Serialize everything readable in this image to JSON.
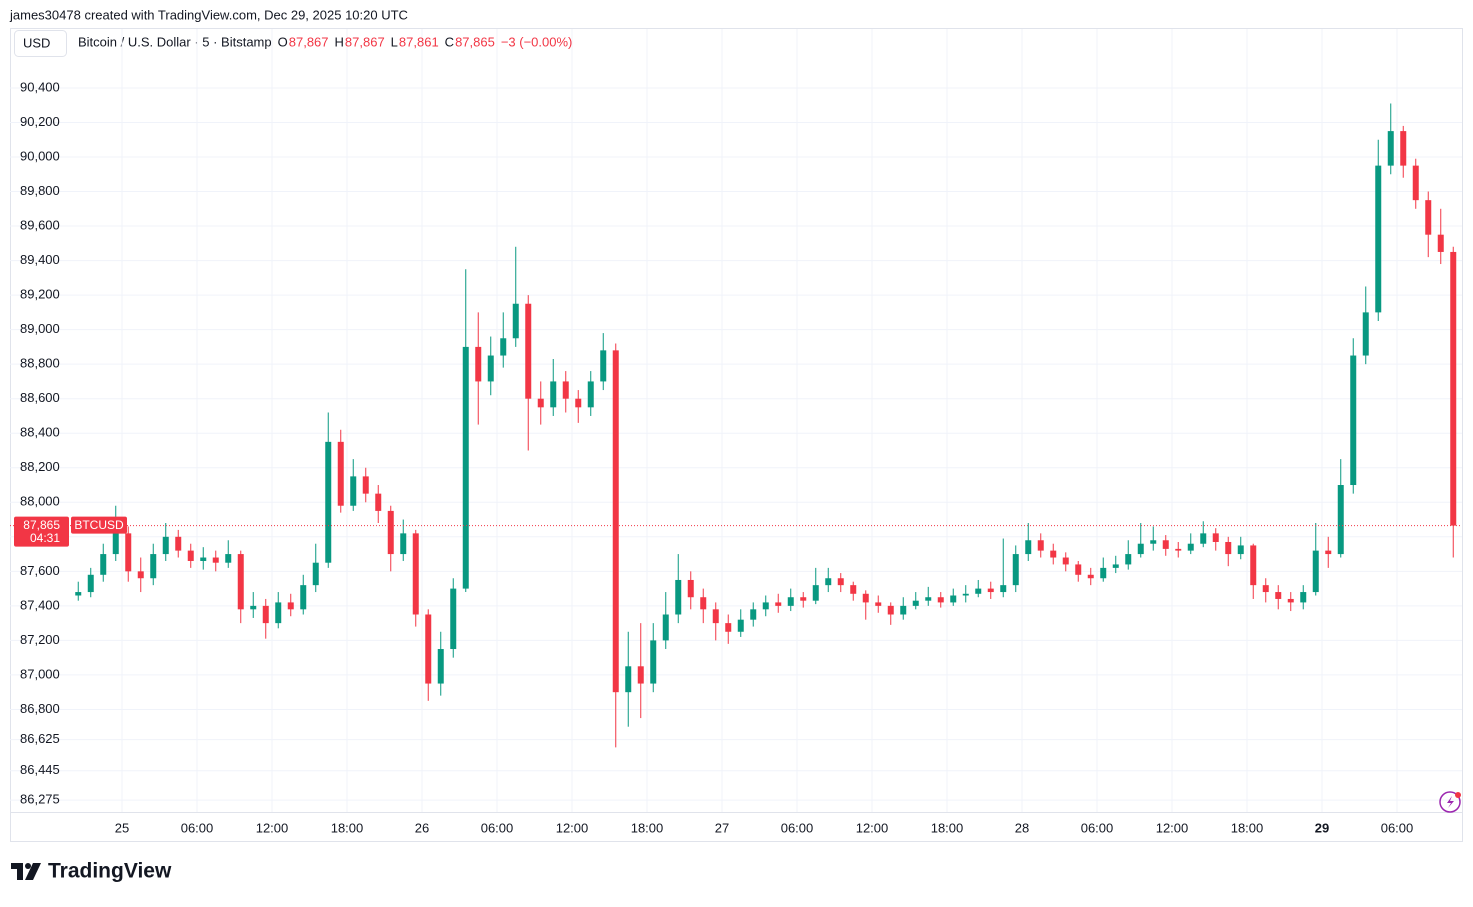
{
  "credit": "james30478 created with TradingView.com, Dec 29, 2025 10:20 UTC",
  "currency": "USD",
  "logo": "TradingView",
  "chart_data": {
    "type": "candlestick",
    "title": "Bitcoin / U.S. Dollar · 5 · Bitstamp",
    "ohlc_legend": [
      {
        "key": "O",
        "value": "87,867"
      },
      {
        "key": "H",
        "value": "87,867"
      },
      {
        "key": "L",
        "value": "87,861"
      },
      {
        "key": "C",
        "value": "87,865"
      }
    ],
    "change": "−3 (−0.00%)",
    "symbol": "BTCUSD",
    "last_price_label": "87,865",
    "countdown": "04:31",
    "up_color": "#089981",
    "down_color": "#f23645",
    "grid": true,
    "ylim": [
      86206,
      90585
    ],
    "yticks": [
      {
        "value": 86275,
        "label": "86,275"
      },
      {
        "value": 86445,
        "label": "86,445"
      },
      {
        "value": 86625,
        "label": "86,625"
      },
      {
        "value": 86800,
        "label": "86,800"
      },
      {
        "value": 87000,
        "label": "87,000"
      },
      {
        "value": 87200,
        "label": "87,200"
      },
      {
        "value": 87400,
        "label": "87,400"
      },
      {
        "value": 87600,
        "label": "87,600"
      },
      {
        "value": 87800,
        "label": "87,800"
      },
      {
        "value": 88000,
        "label": "88,000"
      },
      {
        "value": 88200,
        "label": "88,200"
      },
      {
        "value": 88400,
        "label": "88,400"
      },
      {
        "value": 88600,
        "label": "88,600"
      },
      {
        "value": 88800,
        "label": "88,800"
      },
      {
        "value": 89000,
        "label": "89,000"
      },
      {
        "value": 89200,
        "label": "89,200"
      },
      {
        "value": 89400,
        "label": "89,400"
      },
      {
        "value": 89600,
        "label": "89,600"
      },
      {
        "value": 89800,
        "label": "89,800"
      },
      {
        "value": 90000,
        "label": "90,000"
      },
      {
        "value": 90200,
        "label": "90,200"
      },
      {
        "value": 90400,
        "label": "90,400"
      }
    ],
    "xticks": [
      {
        "value": "2025-12-25T00:00",
        "label": "25"
      },
      {
        "value": "2025-12-25T06:00",
        "label": "06:00"
      },
      {
        "value": "2025-12-25T12:00",
        "label": "12:00"
      },
      {
        "value": "2025-12-25T18:00",
        "label": "18:00"
      },
      {
        "value": "2025-12-26T00:00",
        "label": "26"
      },
      {
        "value": "2025-12-26T06:00",
        "label": "06:00"
      },
      {
        "value": "2025-12-26T12:00",
        "label": "12:00"
      },
      {
        "value": "2025-12-26T18:00",
        "label": "18:00"
      },
      {
        "value": "2025-12-27T00:00",
        "label": "27"
      },
      {
        "value": "2025-12-27T06:00",
        "label": "06:00"
      },
      {
        "value": "2025-12-27T12:00",
        "label": "12:00"
      },
      {
        "value": "2025-12-27T18:00",
        "label": "18:00"
      },
      {
        "value": "2025-12-28T00:00",
        "label": "28"
      },
      {
        "value": "2025-12-28T06:00",
        "label": "06:00"
      },
      {
        "value": "2025-12-28T12:00",
        "label": "12:00"
      },
      {
        "value": "2025-12-28T18:00",
        "label": "18:00"
      },
      {
        "value": "2025-12-29T00:00",
        "label": "29"
      },
      {
        "value": "2025-12-29T06:00",
        "label": "06:00"
      }
    ],
    "x": [
      "2025-12-24T20:00",
      "2025-12-24T21:00",
      "2025-12-24T22:00",
      "2025-12-24T23:00",
      "2025-12-25T00:00",
      "2025-12-25T01:00",
      "2025-12-25T02:00",
      "2025-12-25T03:00",
      "2025-12-25T04:00",
      "2025-12-25T05:00",
      "2025-12-25T06:00",
      "2025-12-25T07:00",
      "2025-12-25T08:00",
      "2025-12-25T09:00",
      "2025-12-25T10:00",
      "2025-12-25T11:00",
      "2025-12-25T12:00",
      "2025-12-25T13:00",
      "2025-12-25T14:00",
      "2025-12-25T15:00",
      "2025-12-25T16:00",
      "2025-12-25T17:00",
      "2025-12-25T18:00",
      "2025-12-25T19:00",
      "2025-12-25T20:00",
      "2025-12-25T21:00",
      "2025-12-25T22:00",
      "2025-12-25T23:00",
      "2025-12-26T00:00",
      "2025-12-26T01:00",
      "2025-12-26T02:00",
      "2025-12-26T03:00",
      "2025-12-26T04:00",
      "2025-12-26T05:00",
      "2025-12-26T06:00",
      "2025-12-26T07:00",
      "2025-12-26T08:00",
      "2025-12-26T09:00",
      "2025-12-26T10:00",
      "2025-12-26T11:00",
      "2025-12-26T12:00",
      "2025-12-26T13:00",
      "2025-12-26T14:00",
      "2025-12-26T15:00",
      "2025-12-26T16:00",
      "2025-12-26T17:00",
      "2025-12-26T18:00",
      "2025-12-26T19:00",
      "2025-12-26T20:00",
      "2025-12-26T21:00",
      "2025-12-26T22:00",
      "2025-12-26T23:00",
      "2025-12-27T00:00",
      "2025-12-27T01:00",
      "2025-12-27T02:00",
      "2025-12-27T03:00",
      "2025-12-27T04:00",
      "2025-12-27T05:00",
      "2025-12-27T06:00",
      "2025-12-27T07:00",
      "2025-12-27T08:00",
      "2025-12-27T09:00",
      "2025-12-27T10:00",
      "2025-12-27T11:00",
      "2025-12-27T12:00",
      "2025-12-27T13:00",
      "2025-12-27T14:00",
      "2025-12-27T15:00",
      "2025-12-27T16:00",
      "2025-12-27T17:00",
      "2025-12-27T18:00",
      "2025-12-27T19:00",
      "2025-12-27T20:00",
      "2025-12-27T21:00",
      "2025-12-27T22:00",
      "2025-12-27T23:00",
      "2025-12-28T00:00",
      "2025-12-28T01:00",
      "2025-12-28T02:00",
      "2025-12-28T03:00",
      "2025-12-28T04:00",
      "2025-12-28T05:00",
      "2025-12-28T06:00",
      "2025-12-28T07:00",
      "2025-12-28T08:00",
      "2025-12-28T09:00",
      "2025-12-28T10:00",
      "2025-12-28T11:00",
      "2025-12-28T12:00",
      "2025-12-28T13:00",
      "2025-12-28T14:00",
      "2025-12-28T15:00",
      "2025-12-28T16:00",
      "2025-12-28T17:00",
      "2025-12-28T18:00",
      "2025-12-28T19:00",
      "2025-12-28T20:00",
      "2025-12-28T21:00",
      "2025-12-28T22:00",
      "2025-12-28T23:00",
      "2025-12-29T00:00",
      "2025-12-29T01:00",
      "2025-12-29T02:00",
      "2025-12-29T03:00",
      "2025-12-29T04:00",
      "2025-12-29T05:00",
      "2025-12-29T06:00",
      "2025-12-29T07:00",
      "2025-12-29T08:00",
      "2025-12-29T09:00",
      "2025-12-29T10:00"
    ],
    "open": [
      87460,
      87480,
      87580,
      87700,
      87820,
      87600,
      87560,
      87700,
      87800,
      87720,
      87660,
      87680,
      87650,
      87700,
      87380,
      87400,
      87300,
      87420,
      87380,
      87520,
      87650,
      88350,
      87980,
      88150,
      88050,
      87950,
      87700,
      87820,
      87350,
      86950,
      87150,
      87500,
      88900,
      88700,
      88850,
      88950,
      89150,
      88600,
      88550,
      88700,
      88600,
      88550,
      88700,
      88880,
      86900,
      87050,
      86950,
      87200,
      87350,
      87550,
      87450,
      87380,
      87300,
      87250,
      87320,
      87380,
      87420,
      87400,
      87450,
      87430,
      87520,
      87560,
      87520,
      87470,
      87420,
      87400,
      87350,
      87400,
      87430,
      87450,
      87420,
      87460,
      87470,
      87500,
      87480,
      87520,
      87700,
      87780,
      87720,
      87680,
      87640,
      87580,
      87560,
      87620,
      87640,
      87700,
      87760,
      87780,
      87730,
      87720,
      87760,
      87820,
      87770,
      87700,
      87750,
      87520,
      87480,
      87440,
      87420,
      87480,
      87720,
      87700,
      88100,
      88850,
      89100,
      89950,
      90150,
      89950,
      89750,
      89550,
      89450
    ],
    "high": [
      87540,
      87620,
      87760,
      87980,
      87860,
      87680,
      87760,
      87880,
      87840,
      87760,
      87740,
      87720,
      87780,
      87720,
      87480,
      87440,
      87480,
      87470,
      87580,
      87760,
      88520,
      88420,
      88250,
      88200,
      88100,
      87980,
      87900,
      87840,
      87380,
      87250,
      87560,
      89350,
      89100,
      88960,
      89100,
      89480,
      89200,
      88700,
      88830,
      88760,
      88650,
      88760,
      88980,
      88920,
      87250,
      87300,
      87300,
      87480,
      87700,
      87600,
      87500,
      87420,
      87350,
      87380,
      87420,
      87460,
      87470,
      87500,
      87480,
      87620,
      87620,
      87590,
      87540,
      87490,
      87460,
      87420,
      87450,
      87480,
      87510,
      87480,
      87500,
      87520,
      87550,
      87540,
      87790,
      87750,
      87880,
      87820,
      87760,
      87710,
      87660,
      87620,
      87680,
      87690,
      87780,
      87880,
      87860,
      87810,
      87770,
      87820,
      87890,
      87850,
      87800,
      87800,
      87760,
      87560,
      87520,
      87480,
      87520,
      87880,
      87800,
      88250,
      88950,
      89250,
      90100,
      90310,
      90180,
      89990,
      89800,
      89700,
      89480
    ],
    "low": [
      87430,
      87450,
      87540,
      87660,
      87540,
      87480,
      87520,
      87660,
      87680,
      87620,
      87610,
      87600,
      87620,
      87300,
      87330,
      87210,
      87270,
      87340,
      87350,
      87480,
      87620,
      87940,
      87950,
      88000,
      87880,
      87600,
      87660,
      87280,
      86850,
      86880,
      87100,
      87480,
      88450,
      88620,
      88780,
      88900,
      88300,
      88450,
      88500,
      88520,
      88460,
      88500,
      88650,
      86580,
      86700,
      86750,
      86900,
      87150,
      87300,
      87380,
      87300,
      87200,
      87180,
      87220,
      87280,
      87340,
      87360,
      87370,
      87390,
      87410,
      87480,
      87480,
      87430,
      87320,
      87360,
      87290,
      87320,
      87380,
      87400,
      87390,
      87400,
      87420,
      87450,
      87440,
      87450,
      87480,
      87660,
      87680,
      87640,
      87600,
      87540,
      87520,
      87540,
      87590,
      87610,
      87680,
      87720,
      87690,
      87680,
      87700,
      87740,
      87720,
      87630,
      87670,
      87440,
      87420,
      87380,
      87370,
      87380,
      87460,
      87620,
      87680,
      88050,
      88800,
      89050,
      89900,
      89880,
      89700,
      89420,
      89380,
      87680
    ],
    "close": [
      87480,
      87580,
      87700,
      87820,
      87600,
      87560,
      87700,
      87800,
      87720,
      87660,
      87680,
      87650,
      87700,
      87380,
      87400,
      87300,
      87420,
      87380,
      87520,
      87650,
      88350,
      87980,
      88150,
      88050,
      87950,
      87700,
      87820,
      87350,
      86950,
      87150,
      87500,
      88900,
      88700,
      88850,
      88950,
      89150,
      88600,
      88550,
      88700,
      88600,
      88550,
      88700,
      88880,
      86900,
      87050,
      86950,
      87200,
      87350,
      87550,
      87450,
      87380,
      87300,
      87250,
      87320,
      87380,
      87420,
      87400,
      87450,
      87430,
      87520,
      87560,
      87520,
      87470,
      87420,
      87400,
      87350,
      87400,
      87430,
      87450,
      87420,
      87460,
      87470,
      87500,
      87480,
      87520,
      87700,
      87780,
      87720,
      87680,
      87640,
      87580,
      87560,
      87620,
      87640,
      87700,
      87760,
      87780,
      87730,
      87720,
      87760,
      87820,
      87770,
      87700,
      87750,
      87520,
      87480,
      87440,
      87420,
      87480,
      87720,
      87700,
      88100,
      88850,
      89100,
      89950,
      90150,
      89950,
      89750,
      89550,
      89450,
      87865
    ]
  }
}
